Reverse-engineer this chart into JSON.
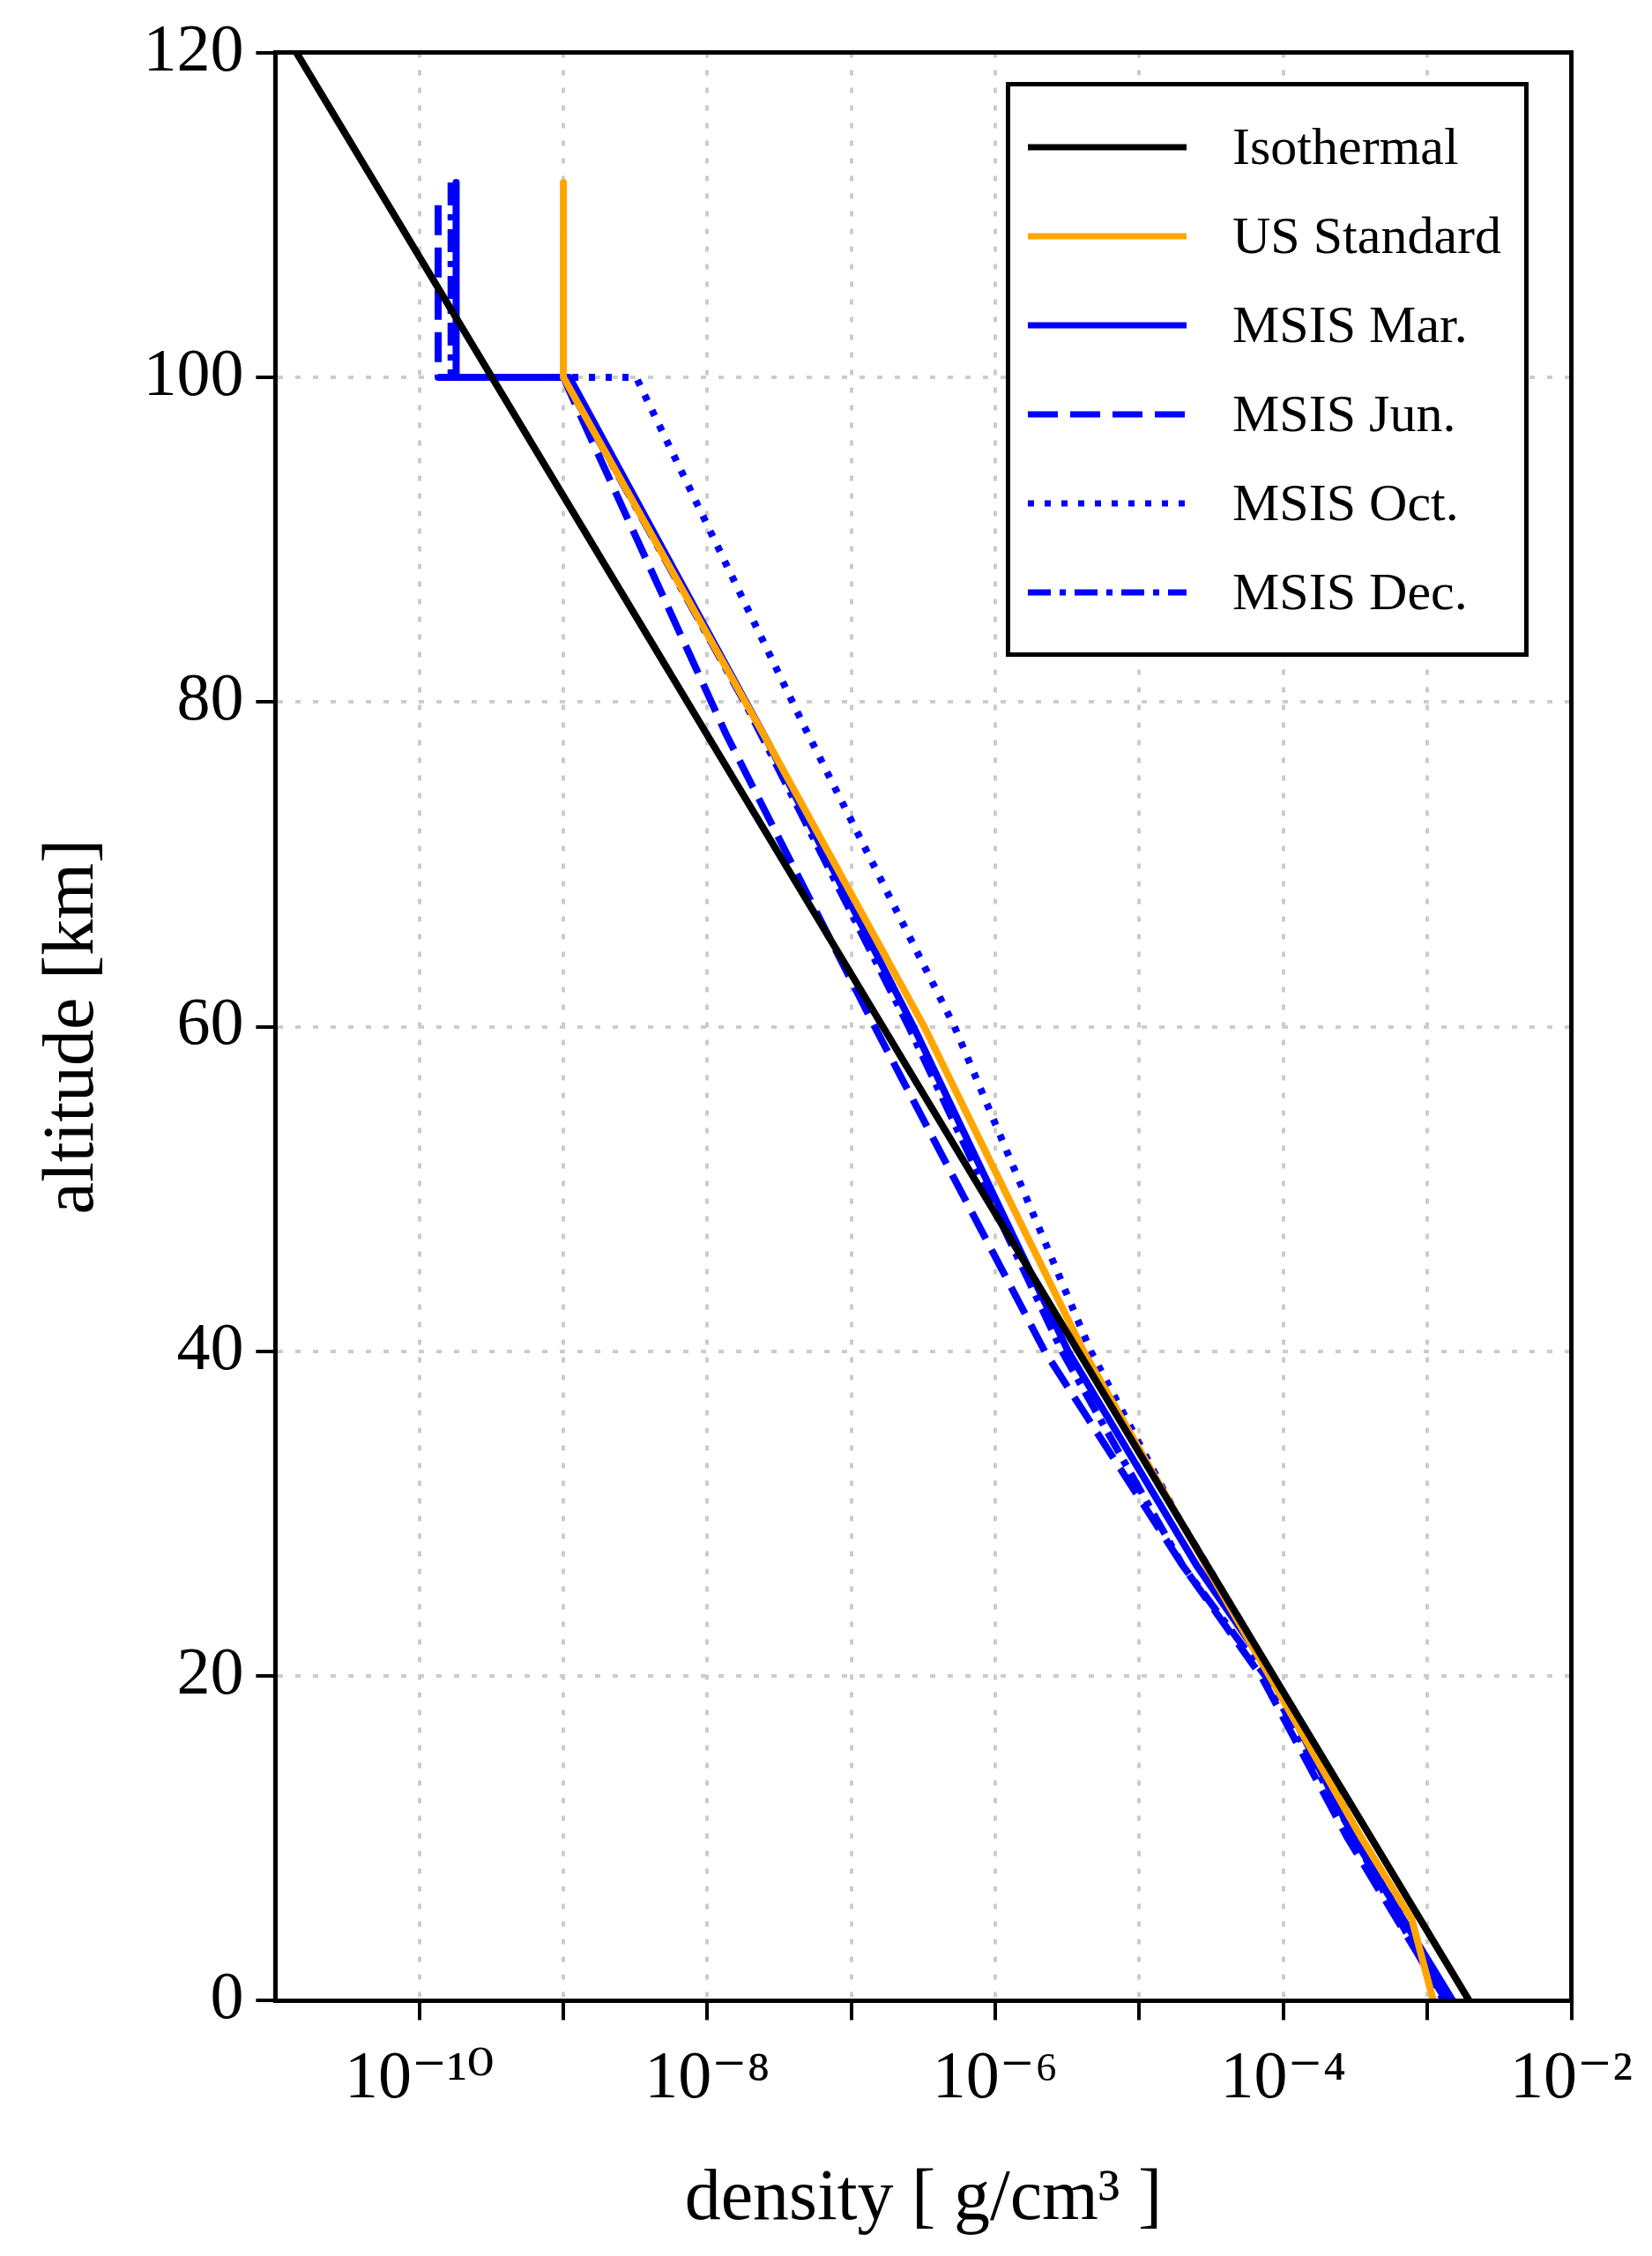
{
  "chart_data": {
    "type": "line",
    "xlabel": "density [ g/cm³ ]",
    "ylabel": "altitude [km]",
    "log": "x",
    "grid": true,
    "legend": "top right",
    "marker": "none",
    "xlim": [
      1e-11,
      0.01
    ],
    "ylim": [
      0,
      120
    ],
    "xticks": [
      {
        "value": 1e-10,
        "label": "10⁻¹⁰"
      },
      {
        "value": 1e-09,
        "label": null
      },
      {
        "value": 1e-08,
        "label": "10⁻⁸"
      },
      {
        "value": 1e-07,
        "label": null
      },
      {
        "value": 1e-06,
        "label": "10⁻⁶"
      },
      {
        "value": 1e-05,
        "label": null
      },
      {
        "value": 0.0001,
        "label": "10⁻⁴"
      },
      {
        "value": 0.001,
        "label": null
      },
      {
        "value": 0.01,
        "label": "10⁻²"
      }
    ],
    "yticks": [
      0,
      20,
      40,
      60,
      80,
      100,
      120
    ],
    "series": [
      {
        "name": "Isothermal",
        "color": "#000000",
        "line_style": "solid",
        "x": [
          1.4e-11,
          0.00195
        ],
        "values": [
          120,
          0
        ]
      },
      {
        "name": "US Standard",
        "color": "#ffa500",
        "line_style": "solid",
        "x": [
          1e-09,
          1e-09,
          2.6e-08,
          3.2e-07,
          4.1e-06,
          1.8e-05,
          8e-05,
          0.00035,
          0.00078,
          0.0011
        ],
        "values": [
          112,
          100,
          77.6,
          60,
          40,
          30,
          20,
          10,
          5,
          0
        ]
      },
      {
        "name": "MSIS Mar.",
        "color": "#0000ff",
        "line_style": "solid",
        "x": [
          1.8e-10,
          1.8e-10,
          1.1e-09,
          2.6e-08,
          2.7e-07,
          3.2e-06,
          2.5e-05,
          8.5e-05,
          0.00031,
          0.00068,
          0.0015
        ],
        "values": [
          112,
          100,
          100,
          77.6,
          60,
          40,
          26.8,
          20,
          10,
          5,
          0
        ]
      },
      {
        "name": "MSIS Jun.",
        "color": "#0000ff",
        "line_style": "dashed",
        "x": [
          1.35e-10,
          1.35e-10,
          1e-09,
          1.26e-09,
          1.35e-08,
          1.45e-07,
          2.2e-06,
          2e-05,
          7e-05,
          0.00028,
          0.00135
        ],
        "values": [
          110.6,
          100,
          100,
          98,
          78,
          60,
          40,
          26.8,
          20,
          10,
          0
        ]
      },
      {
        "name": "MSIS Oct.",
        "color": "#0000ff",
        "line_style": "dotted",
        "x": [
          1.35e-10,
          3.2e-09,
          4.7e-08,
          5.2e-07,
          4.6e-06,
          1.8e-05,
          8.5e-05,
          0.0014
        ],
        "values": [
          100,
          100,
          78.5,
          60,
          40,
          30,
          20,
          0
        ]
      },
      {
        "name": "MSIS Dec.",
        "color": "#0000ff",
        "line_style": "dashdot",
        "x": [
          1.66e-10,
          1.66e-10,
          1e-09,
          1.86e-08,
          2.5e-07,
          2.9e-06,
          2e-05,
          7.5e-05,
          0.0013
        ],
        "values": [
          112,
          100,
          100,
          79.8,
          60,
          40,
          26.8,
          20,
          0
        ]
      }
    ]
  }
}
